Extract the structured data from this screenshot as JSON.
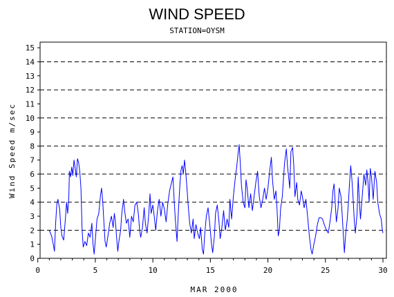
{
  "chart_data": {
    "type": "line",
    "title": "WIND SPEED",
    "subtitle": "STATION=OYSM",
    "xlabel": "MAR 2000",
    "ylabel": "Wind Speed m/sec",
    "xlim": [
      0.2,
      30.3
    ],
    "ylim": [
      0,
      15.4
    ],
    "x_ticks": [
      0,
      5,
      10,
      15,
      20,
      25,
      30
    ],
    "x_tick_labels": [
      "0",
      "5",
      "10",
      "15",
      "20",
      "25",
      "30"
    ],
    "y_ticks": [
      0,
      1,
      2,
      3,
      4,
      5,
      6,
      7,
      8,
      9,
      10,
      11,
      12,
      13,
      14,
      15
    ],
    "y_tick_labels": [
      "0",
      "1",
      "2",
      "3",
      "4",
      "5",
      "6",
      "7",
      "8",
      "9",
      "10",
      "11",
      "12",
      "13",
      "14",
      "15"
    ],
    "reference_lines": [
      0,
      2,
      4,
      6,
      8,
      10,
      12,
      14
    ],
    "grid": "dashed horizontal at even values",
    "colors": {
      "series": "#0000ff",
      "axis": "#000000",
      "grid": "#000000"
    },
    "series": [
      {
        "points": [
          [
            1.0,
            2.0
          ],
          [
            1.2,
            1.6
          ],
          [
            1.35,
            1.0
          ],
          [
            1.45,
            0.5
          ],
          [
            1.55,
            2.5
          ],
          [
            1.65,
            3.8
          ],
          [
            1.75,
            4.2
          ],
          [
            1.9,
            3.5
          ],
          [
            2.0,
            2.2
          ],
          [
            2.1,
            1.6
          ],
          [
            2.25,
            1.3
          ],
          [
            2.4,
            2.8
          ],
          [
            2.5,
            4.0
          ],
          [
            2.6,
            3.2
          ],
          [
            2.7,
            4.4
          ],
          [
            2.75,
            6.2
          ],
          [
            2.85,
            5.8
          ],
          [
            2.95,
            6.5
          ],
          [
            3.05,
            5.9
          ],
          [
            3.15,
            7.0
          ],
          [
            3.25,
            6.4
          ],
          [
            3.35,
            5.8
          ],
          [
            3.45,
            7.1
          ],
          [
            3.55,
            6.8
          ],
          [
            3.65,
            6.2
          ],
          [
            3.75,
            5.0
          ],
          [
            3.85,
            2.0
          ],
          [
            3.95,
            0.8
          ],
          [
            4.1,
            1.2
          ],
          [
            4.25,
            0.9
          ],
          [
            4.4,
            1.8
          ],
          [
            4.55,
            1.5
          ],
          [
            4.7,
            2.5
          ],
          [
            4.8,
            1.0
          ],
          [
            4.9,
            0.3
          ],
          [
            5.05,
            1.8
          ],
          [
            5.15,
            2.8
          ],
          [
            5.3,
            3.2
          ],
          [
            5.45,
            4.5
          ],
          [
            5.55,
            5.0
          ],
          [
            5.65,
            4.0
          ],
          [
            5.75,
            2.5
          ],
          [
            5.85,
            1.2
          ],
          [
            5.95,
            0.8
          ],
          [
            6.1,
            1.6
          ],
          [
            6.25,
            2.5
          ],
          [
            6.4,
            3.0
          ],
          [
            6.55,
            2.2
          ],
          [
            6.65,
            3.2
          ],
          [
            6.75,
            2.6
          ],
          [
            6.85,
            1.5
          ],
          [
            6.95,
            0.5
          ],
          [
            7.05,
            1.2
          ],
          [
            7.2,
            2.0
          ],
          [
            7.3,
            3.2
          ],
          [
            7.45,
            4.2
          ],
          [
            7.55,
            3.4
          ],
          [
            7.7,
            2.5
          ],
          [
            7.85,
            2.8
          ],
          [
            8.0,
            1.5
          ],
          [
            8.15,
            3.0
          ],
          [
            8.3,
            2.6
          ],
          [
            8.45,
            3.8
          ],
          [
            8.6,
            4.0
          ],
          [
            8.75,
            3.1
          ],
          [
            8.85,
            2.0
          ],
          [
            8.95,
            1.5
          ],
          [
            9.1,
            2.2
          ],
          [
            9.25,
            3.6
          ],
          [
            9.35,
            2.5
          ],
          [
            9.5,
            1.8
          ],
          [
            9.65,
            3.2
          ],
          [
            9.75,
            4.6
          ],
          [
            9.85,
            3.2
          ],
          [
            10.0,
            3.8
          ],
          [
            10.15,
            2.8
          ],
          [
            10.25,
            2.0
          ],
          [
            10.4,
            3.4
          ],
          [
            10.55,
            4.2
          ],
          [
            10.7,
            3.0
          ],
          [
            10.85,
            4.0
          ],
          [
            11.0,
            3.5
          ],
          [
            11.15,
            2.6
          ],
          [
            11.3,
            3.9
          ],
          [
            11.45,
            4.8
          ],
          [
            11.6,
            5.3
          ],
          [
            11.75,
            5.8
          ],
          [
            11.85,
            4.2
          ],
          [
            11.95,
            2.8
          ],
          [
            12.1,
            1.2
          ],
          [
            12.2,
            3.0
          ],
          [
            12.35,
            5.2
          ],
          [
            12.45,
            6.3
          ],
          [
            12.55,
            6.6
          ],
          [
            12.65,
            6.0
          ],
          [
            12.75,
            7.0
          ],
          [
            12.85,
            6.2
          ],
          [
            12.95,
            5.2
          ],
          [
            13.05,
            4.0
          ],
          [
            13.2,
            2.5
          ],
          [
            13.35,
            1.8
          ],
          [
            13.5,
            2.8
          ],
          [
            13.6,
            1.4
          ],
          [
            13.75,
            2.4
          ],
          [
            13.9,
            1.8
          ],
          [
            14.05,
            1.4
          ],
          [
            14.15,
            2.2
          ],
          [
            14.3,
            0.6
          ],
          [
            14.4,
            0.3
          ],
          [
            14.5,
            1.6
          ],
          [
            14.65,
            3.0
          ],
          [
            14.8,
            3.6
          ],
          [
            14.95,
            2.4
          ],
          [
            15.1,
            1.0
          ],
          [
            15.2,
            0.4
          ],
          [
            15.35,
            1.6
          ],
          [
            15.45,
            3.2
          ],
          [
            15.6,
            3.8
          ],
          [
            15.75,
            2.6
          ],
          [
            15.85,
            1.4
          ],
          [
            16.0,
            2.2
          ],
          [
            16.15,
            3.4
          ],
          [
            16.3,
            2.0
          ],
          [
            16.45,
            2.8
          ],
          [
            16.6,
            2.2
          ],
          [
            16.7,
            4.2
          ],
          [
            16.85,
            2.8
          ],
          [
            17.0,
            4.4
          ],
          [
            17.15,
            5.6
          ],
          [
            17.3,
            6.6
          ],
          [
            17.4,
            7.4
          ],
          [
            17.5,
            8.1
          ],
          [
            17.6,
            6.8
          ],
          [
            17.7,
            5.2
          ],
          [
            17.85,
            4.0
          ],
          [
            18.0,
            3.6
          ],
          [
            18.1,
            5.6
          ],
          [
            18.2,
            5.0
          ],
          [
            18.35,
            3.6
          ],
          [
            18.5,
            4.6
          ],
          [
            18.65,
            3.4
          ],
          [
            18.8,
            4.4
          ],
          [
            18.95,
            5.4
          ],
          [
            19.1,
            6.2
          ],
          [
            19.25,
            4.4
          ],
          [
            19.4,
            3.6
          ],
          [
            19.55,
            4.2
          ],
          [
            19.7,
            5.0
          ],
          [
            19.85,
            4.2
          ],
          [
            20.0,
            5.0
          ],
          [
            20.15,
            6.2
          ],
          [
            20.3,
            7.2
          ],
          [
            20.4,
            5.6
          ],
          [
            20.55,
            4.2
          ],
          [
            20.7,
            4.8
          ],
          [
            20.8,
            3.4
          ],
          [
            20.9,
            1.6
          ],
          [
            21.0,
            2.0
          ],
          [
            21.1,
            3.5
          ],
          [
            21.25,
            4.4
          ],
          [
            21.35,
            5.6
          ],
          [
            21.45,
            6.8
          ],
          [
            21.6,
            7.8
          ],
          [
            21.7,
            6.6
          ],
          [
            21.8,
            5.8
          ],
          [
            21.9,
            5.0
          ],
          [
            22.0,
            7.6
          ],
          [
            22.15,
            7.9
          ],
          [
            22.25,
            6.6
          ],
          [
            22.35,
            4.4
          ],
          [
            22.5,
            5.4
          ],
          [
            22.6,
            4.2
          ],
          [
            22.75,
            3.8
          ],
          [
            22.9,
            4.8
          ],
          [
            23.0,
            4.4
          ],
          [
            23.15,
            3.6
          ],
          [
            23.3,
            4.2
          ],
          [
            23.45,
            3.0
          ],
          [
            23.6,
            1.6
          ],
          [
            23.75,
            0.6
          ],
          [
            23.85,
            0.3
          ],
          [
            24.0,
            1.0
          ],
          [
            24.15,
            1.6
          ],
          [
            24.3,
            2.4
          ],
          [
            24.45,
            2.9
          ],
          [
            24.6,
            2.9
          ],
          [
            24.75,
            2.8
          ],
          [
            24.9,
            2.4
          ],
          [
            25.1,
            2.0
          ],
          [
            25.25,
            1.8
          ],
          [
            25.4,
            2.6
          ],
          [
            25.55,
            3.6
          ],
          [
            25.65,
            4.8
          ],
          [
            25.75,
            5.3
          ],
          [
            25.85,
            4.0
          ],
          [
            25.95,
            2.6
          ],
          [
            26.1,
            3.6
          ],
          [
            26.2,
            5.0
          ],
          [
            26.35,
            4.4
          ],
          [
            26.45,
            3.2
          ],
          [
            26.55,
            1.8
          ],
          [
            26.65,
            0.4
          ],
          [
            26.75,
            1.6
          ],
          [
            26.9,
            2.8
          ],
          [
            27.0,
            4.0
          ],
          [
            27.1,
            5.4
          ],
          [
            27.2,
            6.6
          ],
          [
            27.3,
            5.6
          ],
          [
            27.4,
            4.4
          ],
          [
            27.5,
            2.8
          ],
          [
            27.6,
            1.8
          ],
          [
            27.75,
            3.2
          ],
          [
            27.85,
            5.8
          ],
          [
            27.95,
            4.0
          ],
          [
            28.05,
            2.8
          ],
          [
            28.2,
            4.4
          ],
          [
            28.35,
            6.0
          ],
          [
            28.5,
            5.2
          ],
          [
            28.6,
            6.3
          ],
          [
            28.7,
            5.4
          ],
          [
            28.8,
            4.0
          ],
          [
            28.9,
            6.4
          ],
          [
            29.0,
            5.8
          ],
          [
            29.15,
            4.2
          ],
          [
            29.3,
            6.2
          ],
          [
            29.45,
            5.4
          ],
          [
            29.55,
            4.0
          ],
          [
            29.7,
            3.2
          ],
          [
            29.85,
            2.8
          ],
          [
            29.95,
            2.0
          ],
          [
            30.0,
            1.8
          ]
        ]
      }
    ]
  }
}
